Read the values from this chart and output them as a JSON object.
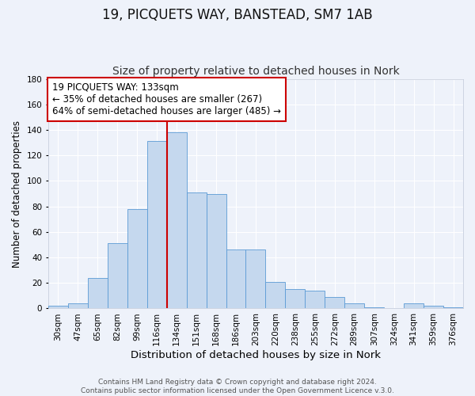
{
  "title": "19, PICQUETS WAY, BANSTEAD, SM7 1AB",
  "subtitle": "Size of property relative to detached houses in Nork",
  "xlabel": "Distribution of detached houses by size in Nork",
  "ylabel": "Number of detached properties",
  "bar_color": "#c5d8ee",
  "bar_edge_color": "#5b9bd5",
  "background_color": "#eef2fa",
  "grid_color": "#ffffff",
  "categories": [
    "30sqm",
    "47sqm",
    "65sqm",
    "82sqm",
    "99sqm",
    "116sqm",
    "134sqm",
    "151sqm",
    "168sqm",
    "186sqm",
    "203sqm",
    "220sqm",
    "238sqm",
    "255sqm",
    "272sqm",
    "289sqm",
    "307sqm",
    "324sqm",
    "341sqm",
    "359sqm",
    "376sqm"
  ],
  "values": [
    2,
    4,
    24,
    51,
    78,
    131,
    138,
    91,
    90,
    46,
    46,
    21,
    15,
    14,
    9,
    4,
    1,
    0,
    4,
    2,
    1
  ],
  "ylim": [
    0,
    180
  ],
  "yticks": [
    0,
    20,
    40,
    60,
    80,
    100,
    120,
    140,
    160,
    180
  ],
  "property_line_color": "#cc0000",
  "property_bar_index": 6,
  "annotation_text": "19 PICQUETS WAY: 133sqm\n← 35% of detached houses are smaller (267)\n64% of semi-detached houses are larger (485) →",
  "annotation_box_color": "#ffffff",
  "annotation_box_edge_color": "#cc0000",
  "footer_text": "Contains HM Land Registry data © Crown copyright and database right 2024.\nContains public sector information licensed under the Open Government Licence v.3.0.",
  "title_fontsize": 12,
  "subtitle_fontsize": 10,
  "xlabel_fontsize": 9.5,
  "ylabel_fontsize": 8.5,
  "tick_fontsize": 7.5,
  "annotation_fontsize": 8.5,
  "footer_fontsize": 6.5
}
